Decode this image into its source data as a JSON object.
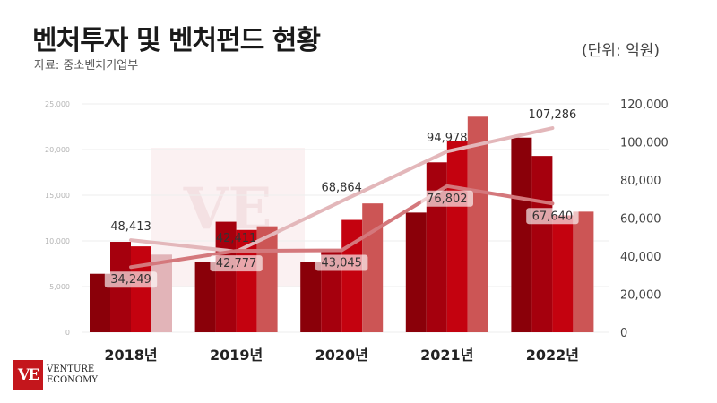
{
  "title": "벤처투자 및 벤처펀드 현황",
  "source": "자료: 중소벤처기업부",
  "unit": "(단위: 억원)",
  "logo": {
    "line1": "VENTURE",
    "line2": "ECONOMY",
    "mark": "VE"
  },
  "colors": {
    "bar1": "#8a0009",
    "bar2": "#a5000d",
    "bar3": "#c4020f",
    "bar4": "#cc5555",
    "bar4_2018": "#e2b4b8",
    "line_top": "#e3b7ba",
    "line_bottom": "#d4787c"
  },
  "chart_data": {
    "type": "bar",
    "categories": [
      "2018년",
      "2019년",
      "2020년",
      "2021년",
      "2022년"
    ],
    "left_axis": {
      "ylim": [
        0,
        25000
      ],
      "ticks": [
        "0",
        "5,000",
        "10,000",
        "15,000",
        "20,000",
        "25,000"
      ]
    },
    "right_axis": {
      "ylim": [
        0,
        120000
      ],
      "ticks": [
        "0",
        "20,000",
        "40,000",
        "60,000",
        "80,000",
        "100,000",
        "120,000"
      ]
    },
    "bar_series": [
      {
        "values": [
          6400,
          7700,
          7700,
          13100,
          21300
        ]
      },
      {
        "values": [
          9900,
          12100,
          8800,
          18600,
          19300
        ]
      },
      {
        "values": [
          9400,
          11200,
          12300,
          20900,
          12800
        ]
      },
      {
        "values": [
          8500,
          11600,
          14100,
          23600,
          13200
        ]
      }
    ],
    "line_series": [
      {
        "values": [
          48413,
          42411,
          68864,
          94978,
          107286
        ],
        "labels": [
          "48,413",
          "42,411",
          "68,864",
          "94,978",
          "107,286"
        ]
      },
      {
        "values": [
          34249,
          42777,
          43045,
          76802,
          67640
        ],
        "labels": [
          "34,249",
          "42,777",
          "43,045",
          "76,802",
          "67,640"
        ]
      }
    ]
  }
}
